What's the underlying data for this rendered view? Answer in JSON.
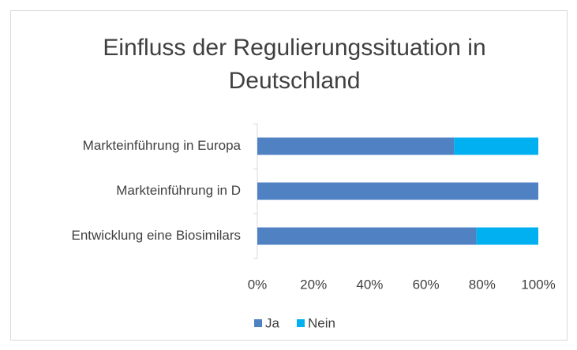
{
  "chart_data": {
    "type": "stacked_bar_horizontal",
    "title": "Einfluss der Regulierungssituation in Deutschland",
    "categories": [
      "Markteinführung in Europa",
      "Markteinführung in D",
      "Entwicklung eine Biosimilars"
    ],
    "series": [
      {
        "name": "Ja",
        "color": "#4f81c3",
        "values": [
          70,
          100,
          78
        ]
      },
      {
        "name": "Nein",
        "color": "#00b0f0",
        "values": [
          30,
          0,
          22
        ]
      }
    ],
    "xlim": [
      0,
      100
    ],
    "xticks": [
      {
        "value": 0,
        "label": "0%"
      },
      {
        "value": 20,
        "label": "20%"
      },
      {
        "value": 40,
        "label": "40%"
      },
      {
        "value": 60,
        "label": "60%"
      },
      {
        "value": 80,
        "label": "80%"
      },
      {
        "value": 100,
        "label": "100%"
      }
    ],
    "legend": "bottom"
  }
}
